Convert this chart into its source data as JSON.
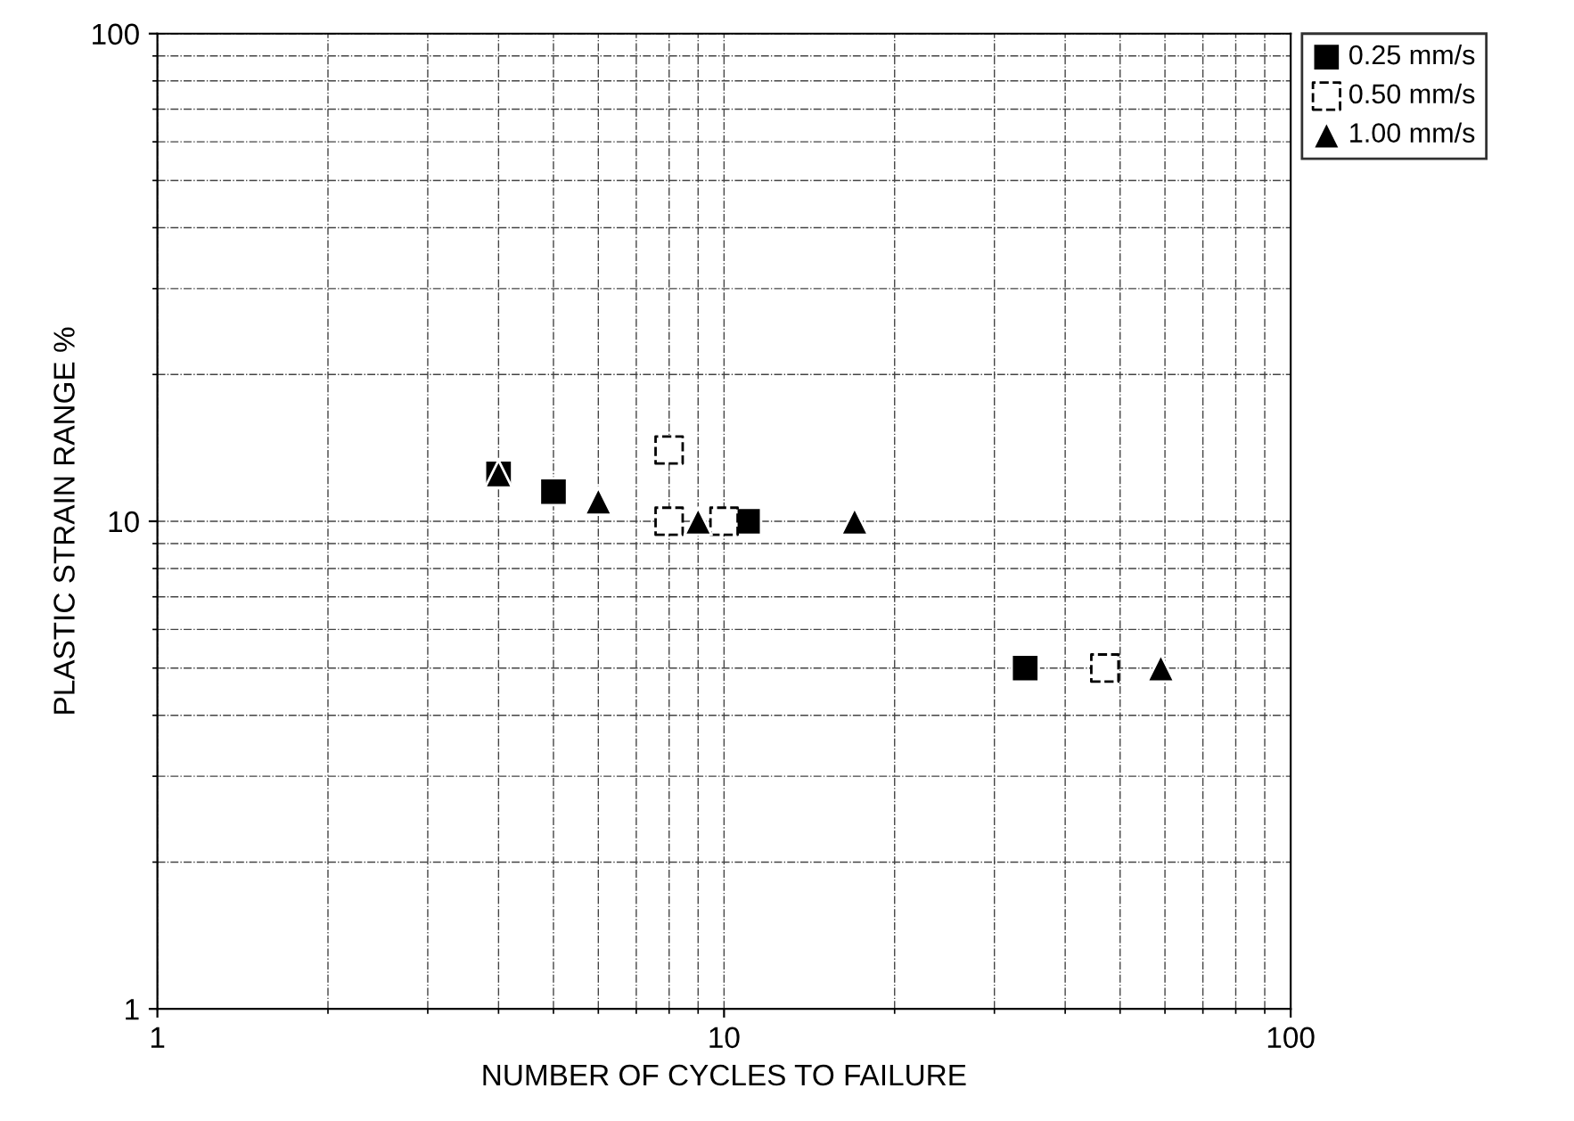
{
  "chart_data": {
    "type": "scatter",
    "xlabel": "NUMBER OF CYCLES TO FAILURE",
    "ylabel": "PLASTIC STRAIN RANGE %",
    "log": "xy",
    "xlim": [
      1,
      100
    ],
    "ylim": [
      1,
      100
    ],
    "xticks": [
      1,
      10,
      100
    ],
    "yticks": [
      1,
      10,
      100
    ],
    "grid": true,
    "legend": "top right",
    "series": [
      {
        "name": "0.25 mm/s",
        "color": "#000000",
        "marker": "square",
        "x": [
          4,
          5,
          11,
          34
        ],
        "values": [
          12.5,
          11.5,
          10,
          5
        ]
      },
      {
        "name": "0.50 mm/s",
        "color": "#ffffff",
        "marker": "square",
        "x": [
          8,
          8,
          10,
          47
        ],
        "values": [
          14,
          10,
          10,
          5
        ]
      },
      {
        "name": "1.00 mm/s",
        "color": "#000000",
        "marker": "triangle",
        "x": [
          4,
          6,
          9,
          17,
          59
        ],
        "values": [
          12.5,
          11,
          10,
          10,
          5
        ]
      }
    ]
  }
}
